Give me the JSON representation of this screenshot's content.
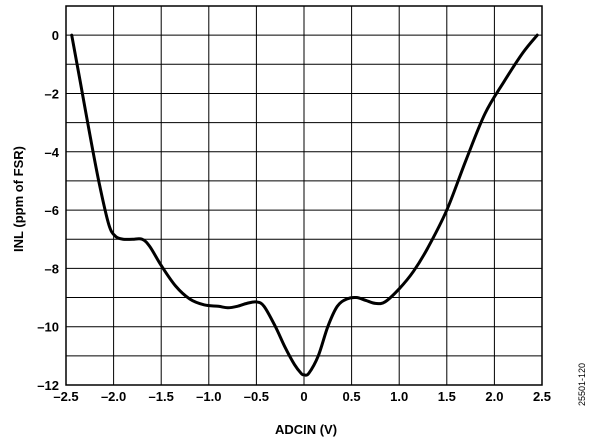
{
  "chart_data": {
    "type": "line",
    "title": "",
    "xlabel": "ADCIN (V)",
    "ylabel": "INL (ppm of FSR)",
    "xlim": [
      -2.5,
      2.5
    ],
    "ylim": [
      -12,
      1
    ],
    "grid": true,
    "x_ticks": [
      -2.5,
      -2.0,
      -1.5,
      -1.0,
      -0.5,
      0,
      0.5,
      1.0,
      1.5,
      2.0,
      2.5
    ],
    "x_tick_labels": [
      "–2.5",
      "–2.0",
      "–1.5",
      "–1.0",
      "–0.5",
      "0",
      "0.5",
      "1.0",
      "1.5",
      "2.0",
      "2.5"
    ],
    "y_ticks": [
      -12,
      -10,
      -8,
      -6,
      -4,
      -2,
      0
    ],
    "y_tick_labels": [
      "–12",
      "–10",
      "–8",
      "–6",
      "–4",
      "–2",
      "0"
    ],
    "series": [
      {
        "color": "#000000",
        "x": [
          -2.44,
          -2.35,
          -2.25,
          -2.15,
          -2.05,
          -1.98,
          -1.9,
          -1.8,
          -1.7,
          -1.62,
          -1.5,
          -1.35,
          -1.2,
          -1.05,
          -0.9,
          -0.8,
          -0.7,
          -0.6,
          -0.5,
          -0.42,
          -0.3,
          -0.2,
          -0.1,
          -0.03,
          0.0,
          0.05,
          0.15,
          0.25,
          0.35,
          0.45,
          0.55,
          0.65,
          0.75,
          0.85,
          1.0,
          1.15,
          1.3,
          1.5,
          1.7,
          1.9,
          2.1,
          2.3,
          2.45
        ],
        "y": [
          0.0,
          -1.6,
          -3.4,
          -5.1,
          -6.5,
          -6.9,
          -7.0,
          -7.0,
          -7.0,
          -7.25,
          -7.9,
          -8.6,
          -9.05,
          -9.25,
          -9.3,
          -9.35,
          -9.3,
          -9.2,
          -9.15,
          -9.3,
          -10.0,
          -10.7,
          -11.3,
          -11.6,
          -11.65,
          -11.6,
          -11.0,
          -10.0,
          -9.3,
          -9.05,
          -9.0,
          -9.1,
          -9.2,
          -9.15,
          -8.7,
          -8.1,
          -7.3,
          -6.0,
          -4.3,
          -2.7,
          -1.6,
          -0.6,
          0.0
        ]
      }
    ]
  },
  "figure_id": "25501-120"
}
